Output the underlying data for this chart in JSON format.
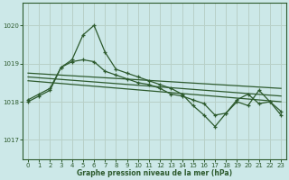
{
  "title": "Graphe pression niveau de la mer (hPa)",
  "bg_color": "#cce8e8",
  "line_color": "#2d5a2d",
  "grid_color": "#b8d0c8",
  "xlim": [
    -0.5,
    23.5
  ],
  "ylim": [
    1016.5,
    1020.6
  ],
  "yticks": [
    1017,
    1018,
    1019,
    1020
  ],
  "xticks": [
    0,
    1,
    2,
    3,
    4,
    5,
    6,
    7,
    8,
    9,
    10,
    11,
    12,
    13,
    14,
    15,
    16,
    17,
    18,
    19,
    20,
    21,
    22,
    23
  ],
  "series1": [
    1018.0,
    1018.15,
    1018.3,
    1018.9,
    1019.1,
    1019.75,
    1020.0,
    1019.3,
    1018.85,
    1018.75,
    1018.65,
    1018.55,
    1018.45,
    1018.35,
    1018.2,
    1017.9,
    1017.65,
    1017.35,
    1017.7,
    1018.0,
    1017.9,
    1018.3,
    1018.0,
    1017.75
  ],
  "series2": [
    1018.05,
    1018.2,
    1018.35,
    1018.9,
    1019.05,
    1019.1,
    1019.05,
    1018.8,
    1018.7,
    1018.6,
    1018.5,
    1018.45,
    1018.35,
    1018.2,
    1018.15,
    1018.05,
    1017.95,
    1017.65,
    1017.7,
    1018.05,
    1018.2,
    1017.95,
    1018.0,
    1017.65
  ],
  "trend1_x": [
    0,
    23
  ],
  "trend1_y": [
    1018.75,
    1018.35
  ],
  "trend2_x": [
    0,
    23
  ],
  "trend2_y": [
    1018.65,
    1018.15
  ],
  "trend3_x": [
    0,
    23
  ],
  "trend3_y": [
    1018.55,
    1018.0
  ]
}
